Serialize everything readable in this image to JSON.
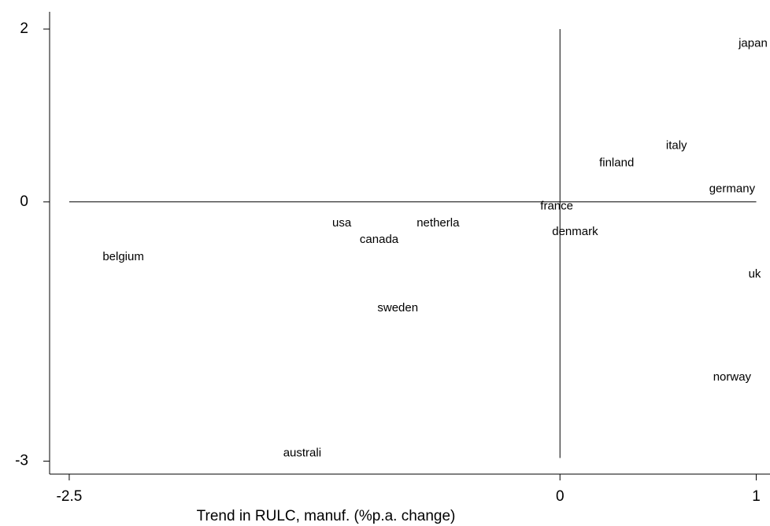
{
  "chart_data": {
    "type": "scatter",
    "x_label": "Trend in RULC, manuf. (%p.a. change)",
    "labels": [
      "japan",
      "italy",
      "finland",
      "germany",
      "france",
      "denmark",
      "uk",
      "norway",
      "usa",
      "netherla",
      "canada",
      "belgium",
      "sweden",
      "australi"
    ],
    "x": [
      0.91,
      0.54,
      0.2,
      0.76,
      -0.1,
      -0.04,
      0.96,
      0.78,
      -1.16,
      -0.73,
      -1.02,
      -2.33,
      -0.93,
      -1.41
    ],
    "y": [
      1.83,
      0.65,
      0.45,
      0.15,
      -0.05,
      -0.35,
      -0.84,
      -2.03,
      -0.25,
      -0.25,
      -0.44,
      -0.64,
      -1.23,
      -2.91
    ],
    "xlim": [
      -2.6,
      1.07
    ],
    "ylim": [
      -3.15,
      2.2
    ],
    "xticks": [
      -2.5,
      0,
      1
    ],
    "yticks": [
      -3,
      0,
      2
    ],
    "reference_lines": {
      "x": 0,
      "y": 0
    }
  }
}
